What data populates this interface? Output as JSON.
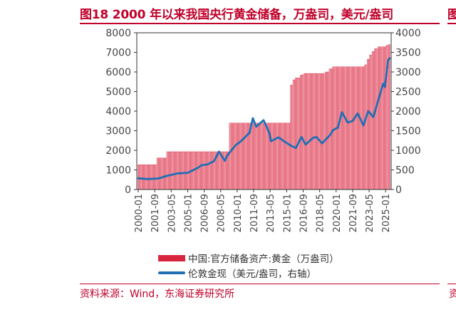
{
  "title": "图18  2000 年以来我国央行黄金储备，万盎司，美元/盎司",
  "edge_clip": "图",
  "source": "资料来源：Wind，东海证券研究所",
  "edge_source": "资",
  "colors": {
    "accent": "#c0002a",
    "bar_fill": "#f4b6c0",
    "bar_edge": "#d9263f",
    "line": "#1f6fb4"
  },
  "chart_data": {
    "type": "bar+line",
    "categories": [
      "2000-01",
      "2001-09",
      "2003-05",
      "2005-01",
      "2006-09",
      "2008-05",
      "2010-01",
      "2011-09",
      "2013-05",
      "2015-01",
      "2016-09",
      "2018-05",
      "2020-01",
      "2021-09",
      "2023-05",
      "2025-01"
    ],
    "left_axis": {
      "ylim": [
        0,
        8000
      ],
      "ticks": [
        "0",
        "1000",
        "2000",
        "3000",
        "4000",
        "5000",
        "6000",
        "7000",
        "8000"
      ]
    },
    "right_axis": {
      "ylim": [
        0,
        4000
      ],
      "ticks": [
        "0",
        "500",
        "1000",
        "1500",
        "2000",
        "2500",
        "3000",
        "3500",
        "4000"
      ]
    },
    "series": [
      {
        "name": "中国:官方储备资产:黄金（万盎司）",
        "kind": "bar",
        "axis": "left",
        "points": [
          [
            "2000-01",
            1267
          ],
          [
            "2001-11",
            1267
          ],
          [
            "2001-12",
            1608
          ],
          [
            "2002-11",
            1608
          ],
          [
            "2002-12",
            1929
          ],
          [
            "2009-03",
            1929
          ],
          [
            "2009-04",
            3389
          ],
          [
            "2015-05",
            3389
          ],
          [
            "2015-06",
            5332
          ],
          [
            "2015-09",
            5600
          ],
          [
            "2015-12",
            5700
          ],
          [
            "2016-06",
            5850
          ],
          [
            "2016-10",
            5924
          ],
          [
            "2018-11",
            5924
          ],
          [
            "2018-12",
            6000
          ],
          [
            "2019-05",
            6161
          ],
          [
            "2019-09",
            6264
          ],
          [
            "2022-11",
            6264
          ],
          [
            "2022-12",
            6367
          ],
          [
            "2023-03",
            6650
          ],
          [
            "2023-06",
            6869
          ],
          [
            "2023-09",
            7046
          ],
          [
            "2023-12",
            7187
          ],
          [
            "2024-04",
            7280
          ],
          [
            "2025-02",
            7361
          ],
          [
            "2025-05",
            7400
          ]
        ]
      },
      {
        "name": "伦敦金现（美元/盎司，右轴）",
        "kind": "line",
        "axis": "right",
        "points": [
          [
            "2000-01",
            285
          ],
          [
            "2001-01",
            268
          ],
          [
            "2002-01",
            280
          ],
          [
            "2003-01",
            355
          ],
          [
            "2004-01",
            410
          ],
          [
            "2005-01",
            425
          ],
          [
            "2006-01",
            550
          ],
          [
            "2006-06",
            620
          ],
          [
            "2007-01",
            640
          ],
          [
            "2007-09",
            725
          ],
          [
            "2008-03",
            970
          ],
          [
            "2008-10",
            730
          ],
          [
            "2009-01",
            870
          ],
          [
            "2009-11",
            1130
          ],
          [
            "2010-06",
            1240
          ],
          [
            "2011-04",
            1450
          ],
          [
            "2011-08",
            1820
          ],
          [
            "2011-12",
            1600
          ],
          [
            "2012-09",
            1770
          ],
          [
            "2013-04",
            1450
          ],
          [
            "2013-06",
            1230
          ],
          [
            "2014-03",
            1330
          ],
          [
            "2014-12",
            1200
          ],
          [
            "2015-07",
            1110
          ],
          [
            "2015-12",
            1060
          ],
          [
            "2016-07",
            1340
          ],
          [
            "2016-12",
            1150
          ],
          [
            "2017-09",
            1320
          ],
          [
            "2018-01",
            1340
          ],
          [
            "2018-08",
            1180
          ],
          [
            "2019-06",
            1400
          ],
          [
            "2019-09",
            1510
          ],
          [
            "2020-03",
            1580
          ],
          [
            "2020-08",
            1970
          ],
          [
            "2021-03",
            1710
          ],
          [
            "2021-09",
            1750
          ],
          [
            "2022-03",
            1940
          ],
          [
            "2022-10",
            1640
          ],
          [
            "2023-04",
            2000
          ],
          [
            "2023-10",
            1850
          ],
          [
            "2024-03",
            2200
          ],
          [
            "2024-10",
            2700
          ],
          [
            "2024-12",
            2620
          ],
          [
            "2025-04",
            3300
          ],
          [
            "2025-06",
            3350
          ]
        ]
      }
    ]
  }
}
